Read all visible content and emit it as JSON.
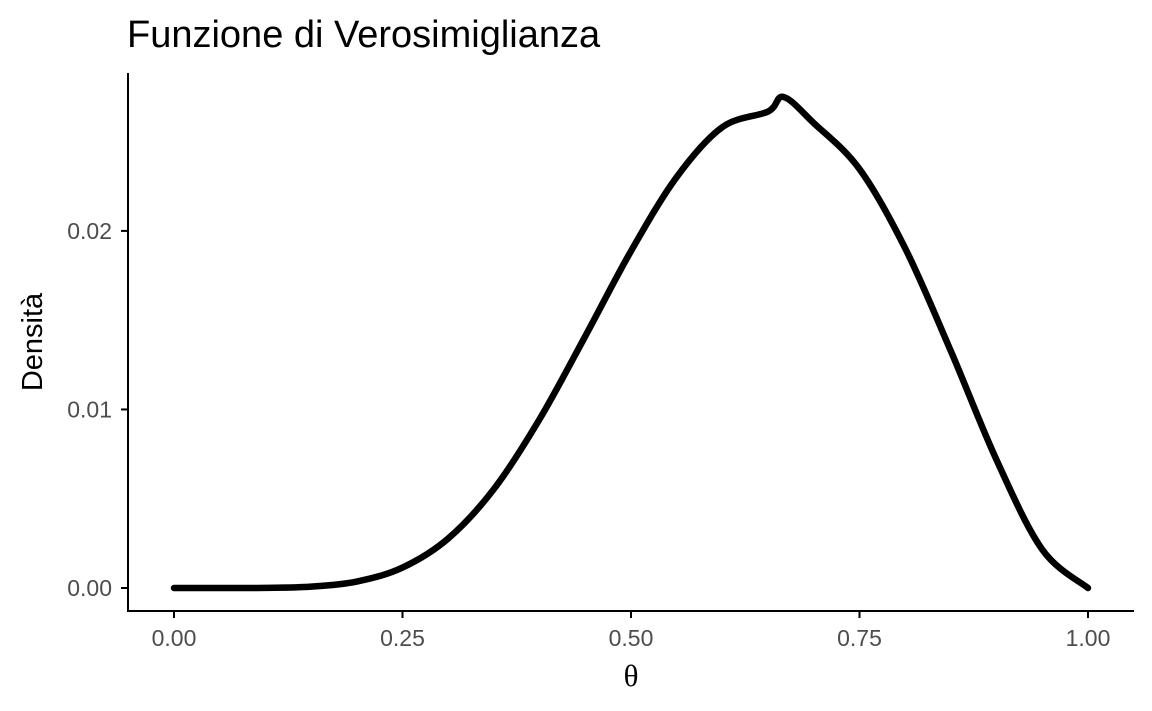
{
  "chart_data": {
    "type": "line",
    "title": "Funzione di Verosimiglianza",
    "xlabel": "θ",
    "ylabel": "Densità",
    "xlim": [
      0,
      1
    ],
    "ylim": [
      0,
      0.0275
    ],
    "x_ticks": [
      0,
      0.25,
      0.5,
      0.75,
      1
    ],
    "x_tick_labels": [
      "0.00",
      "0.25",
      "0.50",
      "0.75",
      "1.00"
    ],
    "y_ticks": [
      0,
      0.01,
      0.02
    ],
    "y_tick_labels": [
      "0.00",
      "0.01",
      "0.02"
    ],
    "grid": false,
    "legend": "none",
    "line_color": "#000000",
    "series": [
      {
        "x": [
          0,
          0.05,
          0.1,
          0.15,
          0.2,
          0.25,
          0.3,
          0.35,
          0.4,
          0.45,
          0.5,
          0.55,
          0.6,
          0.65,
          0.667,
          0.7,
          0.75,
          0.8,
          0.85,
          0.9,
          0.95,
          1
        ],
        "values": [
          0,
          1e-07,
          7.6e-06,
          7.57e-05,
          0.0003616,
          0.0011458,
          0.0027735,
          0.0055425,
          0.0094575,
          0.0141061,
          0.0188704,
          0.0230189,
          0.0258145,
          0.0266845,
          0.0275,
          0.0260367,
          0.0234632,
          0.0190247,
          0.0132618,
          0.0071661,
          0.0021512,
          0
        ]
      }
    ]
  }
}
